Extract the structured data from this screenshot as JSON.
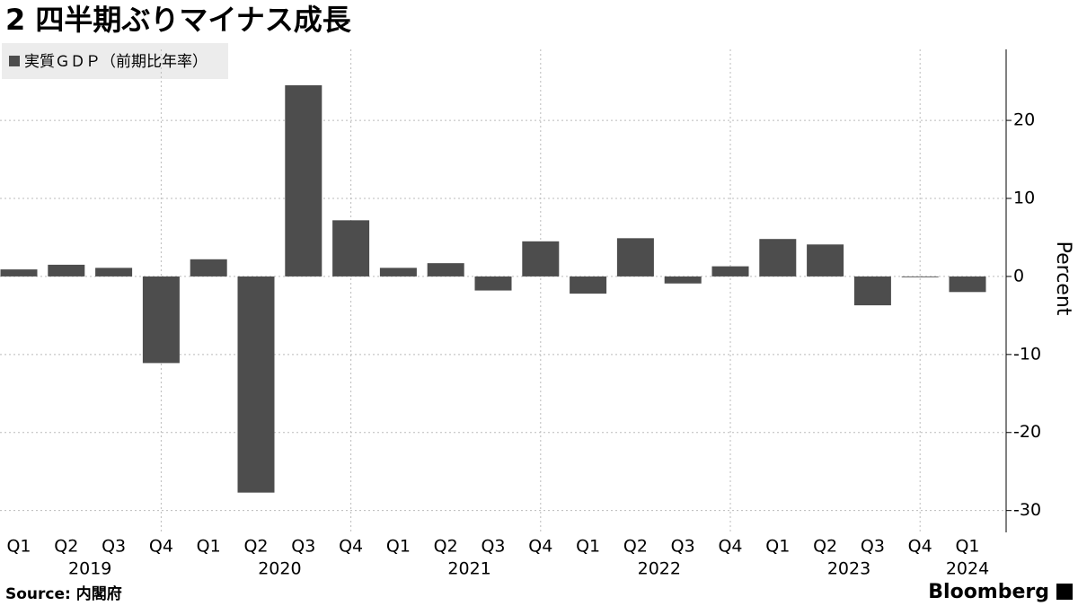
{
  "chart_data": {
    "type": "bar",
    "title": "2 四半期ぶりマイナス成長",
    "legend": "実質ＧＤＰ（前期比年率）",
    "y_label": "Percent",
    "source": "Source: 内閣府",
    "brand": "Bloomberg",
    "categories": [
      "Q1",
      "Q2",
      "Q3",
      "Q4",
      "Q1",
      "Q2",
      "Q3",
      "Q4",
      "Q1",
      "Q2",
      "Q3",
      "Q4",
      "Q1",
      "Q2",
      "Q3",
      "Q4",
      "Q1",
      "Q2",
      "Q3",
      "Q4",
      "Q1"
    ],
    "years": [
      "2019",
      "2020",
      "2021",
      "2022",
      "2023",
      "2024"
    ],
    "values": [
      0.9,
      1.5,
      1.1,
      -11.1,
      2.2,
      -27.7,
      24.5,
      7.2,
      1.1,
      1.7,
      -1.8,
      4.5,
      -2.2,
      4.9,
      -0.9,
      1.3,
      4.8,
      4.1,
      -3.7,
      -0.1,
      -2.0
    ],
    "color": "#4d4d4d",
    "ylim": [
      -32.8,
      29.1
    ],
    "yticks": [
      -30,
      -20,
      -10,
      0,
      10,
      20
    ],
    "grid": true
  }
}
